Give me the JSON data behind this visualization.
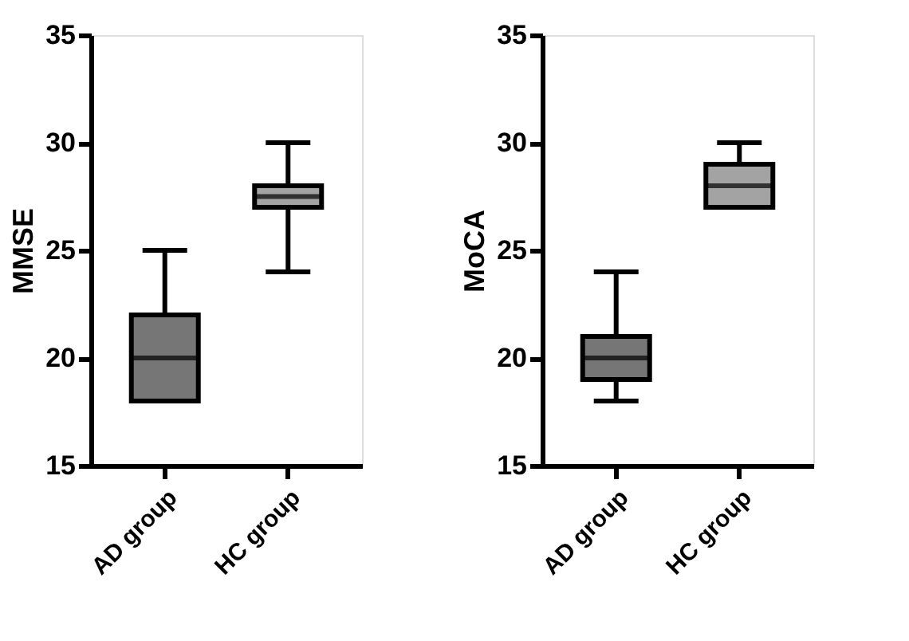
{
  "chart_data": [
    {
      "type": "box",
      "ylabel": "MMSE",
      "categories": [
        "AD group",
        "HC group"
      ],
      "colors": [
        "#767676",
        "#a3a3a3"
      ],
      "boxes": [
        {
          "low": 18,
          "q1": 18,
          "median": 20,
          "q3": 22,
          "high": 25
        },
        {
          "low": 24,
          "q1": 27,
          "median": 27.5,
          "q3": 28,
          "high": 30
        }
      ],
      "ylim": [
        15,
        35
      ],
      "yticks": [
        15,
        20,
        25,
        30,
        35
      ],
      "grid": false
    },
    {
      "type": "box",
      "ylabel": "MoCA",
      "categories": [
        "AD group",
        "HC group"
      ],
      "colors": [
        "#767676",
        "#a3a3a3"
      ],
      "boxes": [
        {
          "low": 18,
          "q1": 19,
          "median": 20,
          "q3": 21,
          "high": 24
        },
        {
          "low": 27,
          "q1": 27,
          "median": 28,
          "q3": 29,
          "high": 30
        }
      ],
      "ylim": [
        15,
        35
      ],
      "yticks": [
        15,
        20,
        25,
        30,
        35
      ],
      "grid": false
    }
  ]
}
